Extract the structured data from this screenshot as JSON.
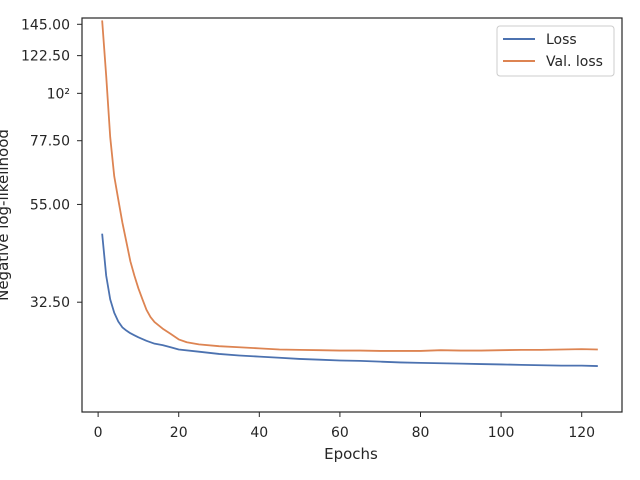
{
  "chart_data": {
    "type": "line",
    "title": "",
    "xlabel": "Epochs",
    "ylabel": "Negative log-likelihood",
    "xlim": [
      -4,
      130
    ],
    "ylim": [
      18,
      150
    ],
    "yscale": "log",
    "grid": false,
    "legend_position": "top-right",
    "x_ticks": [
      0,
      20,
      40,
      60,
      80,
      100,
      120
    ],
    "x_tick_labels": [
      "0",
      "20",
      "40",
      "60",
      "80",
      "100",
      "120"
    ],
    "y_ticks": [
      {
        "value": 32.5,
        "label": "32.50"
      },
      {
        "value": 55,
        "label": "55.00"
      },
      {
        "value": 77.5,
        "label": "77.50"
      },
      {
        "value": 100,
        "label": "10²"
      },
      {
        "value": 122.5,
        "label": "122.50"
      },
      {
        "value": 145,
        "label": "145.00"
      }
    ],
    "series": [
      {
        "name": "Loss",
        "color": "#4c72b0",
        "points": [
          [
            1,
            47.0
          ],
          [
            2,
            37.5
          ],
          [
            3,
            33.0
          ],
          [
            4,
            30.7
          ],
          [
            5,
            29.3
          ],
          [
            6,
            28.4
          ],
          [
            7,
            27.9
          ],
          [
            8,
            27.5
          ],
          [
            9,
            27.2
          ],
          [
            10,
            26.9
          ],
          [
            12,
            26.4
          ],
          [
            14,
            26.0
          ],
          [
            16,
            25.8
          ],
          [
            18,
            25.5
          ],
          [
            20,
            25.2
          ],
          [
            25,
            24.9
          ],
          [
            30,
            24.6
          ],
          [
            35,
            24.4
          ],
          [
            40,
            24.25
          ],
          [
            45,
            24.1
          ],
          [
            50,
            23.95
          ],
          [
            55,
            23.85
          ],
          [
            60,
            23.75
          ],
          [
            65,
            23.7
          ],
          [
            70,
            23.6
          ],
          [
            75,
            23.5
          ],
          [
            80,
            23.45
          ],
          [
            85,
            23.4
          ],
          [
            90,
            23.35
          ],
          [
            95,
            23.3
          ],
          [
            100,
            23.25
          ],
          [
            105,
            23.2
          ],
          [
            110,
            23.15
          ],
          [
            115,
            23.1
          ],
          [
            120,
            23.1
          ],
          [
            124,
            23.05
          ]
        ]
      },
      {
        "name": "Val. loss",
        "color": "#dd8452",
        "points": [
          [
            1,
            148.0
          ],
          [
            2,
            110.0
          ],
          [
            3,
            79.0
          ],
          [
            4,
            64.0
          ],
          [
            5,
            56.5
          ],
          [
            6,
            50.0
          ],
          [
            7,
            45.0
          ],
          [
            8,
            40.5
          ],
          [
            9,
            37.5
          ],
          [
            10,
            35.0
          ],
          [
            11,
            33.0
          ],
          [
            12,
            31.2
          ],
          [
            13,
            30.0
          ],
          [
            14,
            29.2
          ],
          [
            16,
            28.2
          ],
          [
            18,
            27.4
          ],
          [
            20,
            26.6
          ],
          [
            22,
            26.2
          ],
          [
            25,
            25.9
          ],
          [
            30,
            25.65
          ],
          [
            35,
            25.5
          ],
          [
            40,
            25.35
          ],
          [
            45,
            25.2
          ],
          [
            50,
            25.15
          ],
          [
            55,
            25.1
          ],
          [
            60,
            25.05
          ],
          [
            65,
            25.05
          ],
          [
            70,
            25.0
          ],
          [
            75,
            25.0
          ],
          [
            80,
            25.0
          ],
          [
            85,
            25.1
          ],
          [
            90,
            25.05
          ],
          [
            95,
            25.05
          ],
          [
            100,
            25.1
          ],
          [
            105,
            25.15
          ],
          [
            110,
            25.15
          ],
          [
            115,
            25.2
          ],
          [
            120,
            25.25
          ],
          [
            124,
            25.2
          ]
        ]
      }
    ]
  }
}
